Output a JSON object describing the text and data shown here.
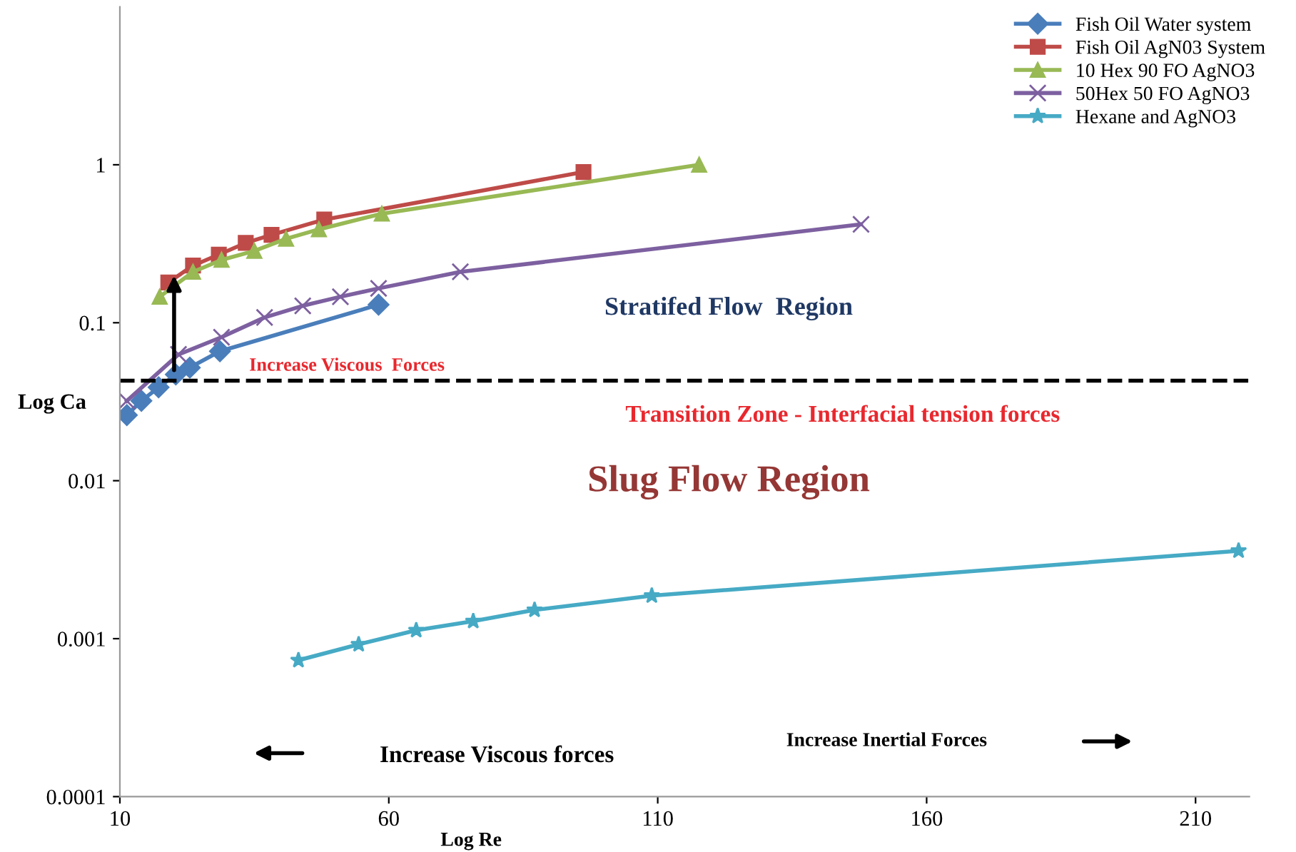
{
  "chart_data": {
    "type": "line",
    "xlabel": "Log Re",
    "ylabel": "Log Ca",
    "log": "y",
    "xlim": [
      10,
      220
    ],
    "xticks": [
      10,
      60,
      110,
      160,
      210
    ],
    "ylim": [
      0.0001,
      10
    ],
    "yticks": [
      0.0001,
      0.001,
      0.01,
      0.1,
      1
    ],
    "grid": false,
    "legend": "top right",
    "line_style": "solid",
    "series": [
      {
        "name": "Fish Oil Water system",
        "color": "#4a7ebb",
        "marker": "diamond",
        "x": [
          11.3,
          14.0,
          17.2,
          20.4,
          23.0,
          28.6,
          58.1
        ],
        "values": [
          0.026,
          0.032,
          0.039,
          0.047,
          0.052,
          0.066,
          0.13
        ]
      },
      {
        "name": "Fish Oil AgN03 System",
        "color": "#be4b48",
        "marker": "square",
        "x": [
          19.0,
          23.6,
          28.4,
          33.4,
          38.2,
          48.0,
          96.2
        ],
        "values": [
          0.18,
          0.23,
          0.27,
          0.32,
          0.36,
          0.45,
          0.9
        ]
      },
      {
        "name": "10 Hex 90 FO AgNO3",
        "color": "#98b954",
        "marker": "triangle",
        "x": [
          17.4,
          23.6,
          28.9,
          35.0,
          40.9,
          47.0,
          58.7,
          117.7
        ],
        "values": [
          0.146,
          0.21,
          0.25,
          0.285,
          0.34,
          0.39,
          0.49,
          1.0
        ]
      },
      {
        "name": "50Hex 50 FO AgNO3",
        "color": "#7d60a0",
        "marker": "cross",
        "x": [
          11.3,
          20.9,
          28.9,
          36.9,
          44.0,
          51.0,
          58.1,
          73.3,
          147.8
        ],
        "values": [
          0.032,
          0.063,
          0.081,
          0.108,
          0.128,
          0.146,
          0.165,
          0.21,
          0.42
        ]
      },
      {
        "name": "Hexane and AgNO3",
        "color": "#46aac5",
        "marker": "star",
        "x": [
          43.2,
          54.4,
          65.1,
          75.7,
          87.1,
          108.9,
          218.0
        ],
        "values": [
          0.00073,
          0.00092,
          0.00113,
          0.00129,
          0.00152,
          0.00187,
          0.0036
        ]
      }
    ],
    "ref_lines": [
      {
        "axis": "y",
        "value": 0.043,
        "color": "#000000",
        "line_style": "dashed"
      }
    ],
    "annotations": [
      "Increase Viscous  Forces",
      "Stratifed Flow  Region",
      "Transition Zone - Interfacial tension forces",
      "Slug Flow Region",
      "Increase Viscous forces",
      "Increase Inertial Forces"
    ]
  }
}
